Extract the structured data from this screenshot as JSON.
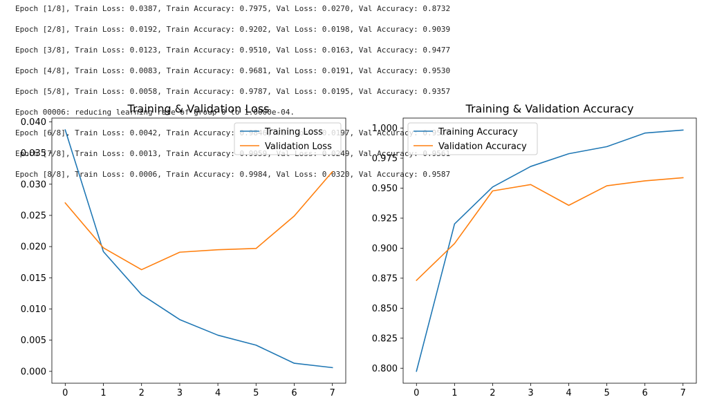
{
  "log_lines": [
    "Epoch [1/8], Train Loss: 0.0387, Train Accuracy: 0.7975, Val Loss: 0.0270, Val Accuracy: 0.8732",
    "Epoch [2/8], Train Loss: 0.0192, Train Accuracy: 0.9202, Val Loss: 0.0198, Val Accuracy: 0.9039",
    "Epoch [3/8], Train Loss: 0.0123, Train Accuracy: 0.9510, Val Loss: 0.0163, Val Accuracy: 0.9477",
    "Epoch [4/8], Train Loss: 0.0083, Train Accuracy: 0.9681, Val Loss: 0.0191, Val Accuracy: 0.9530",
    "Epoch [5/8], Train Loss: 0.0058, Train Accuracy: 0.9787, Val Loss: 0.0195, Val Accuracy: 0.9357",
    "Epoch 00006: reducing learning rate of group 0 to 1.0000e-04.",
    "Epoch [6/8], Train Loss: 0.0042, Train Accuracy: 0.9846, Val Loss: 0.0197, Val Accuracy: 0.9520",
    "Epoch [7/8], Train Loss: 0.0013, Train Accuracy: 0.9959, Val Loss: 0.0249, Val Accuracy: 0.9561",
    "Epoch [8/8], Train Loss: 0.0006, Train Accuracy: 0.9984, Val Loss: 0.0320, Val Accuracy: 0.9587"
  ],
  "chart_data": [
    {
      "type": "line",
      "title": "Training & Validation Loss",
      "xlabel": "",
      "ylabel": "",
      "x": [
        0,
        1,
        2,
        3,
        4,
        5,
        6,
        7
      ],
      "xticks": [
        "0",
        "1",
        "2",
        "3",
        "4",
        "5",
        "6",
        "7"
      ],
      "ylim": [
        -0.0019,
        0.0406
      ],
      "yticks": [
        0.0,
        0.005,
        0.01,
        0.015,
        0.02,
        0.025,
        0.03,
        0.035,
        0.04
      ],
      "ytick_labels": [
        "0.000",
        "0.005",
        "0.010",
        "0.015",
        "0.020",
        "0.025",
        "0.030",
        "0.035",
        "0.040"
      ],
      "legend_position": "top-right",
      "grid": false,
      "series": [
        {
          "name": "Training Loss",
          "color": "#1f77b4",
          "values": [
            0.0387,
            0.0192,
            0.0123,
            0.0083,
            0.0058,
            0.0042,
            0.0013,
            0.0006
          ]
        },
        {
          "name": "Validation Loss",
          "color": "#ff7f0e",
          "values": [
            0.027,
            0.0198,
            0.0163,
            0.0191,
            0.0195,
            0.0197,
            0.0249,
            0.032
          ]
        }
      ]
    },
    {
      "type": "line",
      "title": "Training & Validation Accuracy",
      "xlabel": "",
      "ylabel": "",
      "x": [
        0,
        1,
        2,
        3,
        4,
        5,
        6,
        7
      ],
      "xticks": [
        "0",
        "1",
        "2",
        "3",
        "4",
        "5",
        "6",
        "7"
      ],
      "ylim": [
        0.7875,
        1.0084
      ],
      "yticks": [
        0.8,
        0.825,
        0.85,
        0.875,
        0.9,
        0.925,
        0.95,
        0.975,
        1.0
      ],
      "ytick_labels": [
        "0.800",
        "0.825",
        "0.850",
        "0.875",
        "0.900",
        "0.925",
        "0.950",
        "0.975",
        "1.000"
      ],
      "legend_position": "top-left",
      "grid": false,
      "series": [
        {
          "name": "Training Accuracy",
          "color": "#1f77b4",
          "values": [
            0.7975,
            0.9202,
            0.951,
            0.9681,
            0.9787,
            0.9846,
            0.9959,
            0.9984
          ]
        },
        {
          "name": "Validation Accuracy",
          "color": "#ff7f0e",
          "values": [
            0.8732,
            0.9039,
            0.9477,
            0.953,
            0.9357,
            0.952,
            0.9561,
            0.9587
          ]
        }
      ]
    }
  ]
}
